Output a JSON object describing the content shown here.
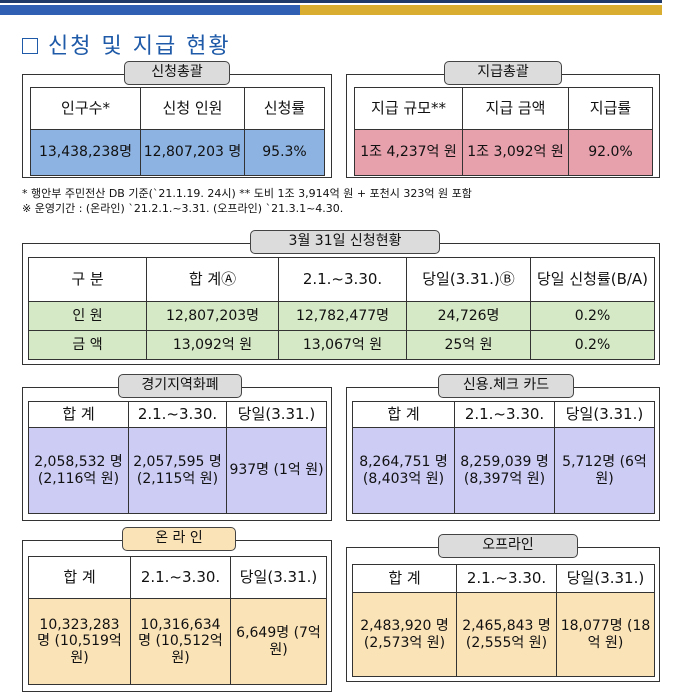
{
  "heading": "신청 및 지급 현황",
  "apply_total": {
    "title": "신청총괄",
    "headers": [
      "인구수*",
      "신청 인원",
      "신청률"
    ],
    "values": [
      "13,438,238명",
      "12,807,203 명",
      "95.3%"
    ]
  },
  "pay_total": {
    "title": "지급총괄",
    "headers": [
      "지급 규모**",
      "지급 금액",
      "지급률"
    ],
    "values": [
      "1조 4,237억 원",
      "1조 3,092억 원",
      "92.0%"
    ]
  },
  "notes": [
    "* 행안부 주민전산 DB 기준(`21.1.19. 24시)  ** 도비 1조 3,914억 원 + 포천시 323억 원 포함",
    "※ 운영기간 : (온라인) `21.2.1.~3.31.  (오프라인) `21.3.1~4.30."
  ],
  "march31": {
    "title": "3월 31일 신청현황",
    "headers": [
      "구 분",
      "합 계Ⓐ",
      "2.1.~3.30.",
      "당일(3.31.)Ⓑ",
      "당일 신청률(B/A)"
    ],
    "rows": [
      [
        "인 원",
        "12,807,203명",
        "12,782,477명",
        "24,726명",
        "0.2%"
      ],
      [
        "금 액",
        "13,092억 원",
        "13,067억 원",
        "25억 원",
        "0.2%"
      ]
    ]
  },
  "gyeonggi": {
    "title": "경기지역화폐",
    "headers": [
      "합 계",
      "2.1.~3.30.",
      "당일(3.31.)"
    ],
    "values": [
      "2,058,532 명 (2,116억 원)",
      "2,057,595 명 (2,115억 원)",
      "937명 (1억 원)"
    ]
  },
  "card": {
    "title": "신용.체크 카드",
    "headers": [
      "합 계",
      "2.1.~3.30.",
      "당일(3.31.)"
    ],
    "values": [
      "8,264,751 명 (8,403억 원)",
      "8,259,039 명 (8,397억 원)",
      "5,712명 (6억 원)"
    ]
  },
  "online": {
    "title": "온 라 인",
    "headers": [
      "합 계",
      "2.1.~3.30.",
      "당일(3.31.)"
    ],
    "values": [
      "10,323,283 명 (10,519억 원)",
      "10,316,634 명 (10,512억 원)",
      "6,649명 (7억 원)"
    ]
  },
  "offline": {
    "title": "오프라인",
    "headers": [
      "합 계",
      "2.1.~3.30.",
      "당일(3.31.)"
    ],
    "values": [
      "2,483,920 명 (2,573억 원)",
      "2,465,843 명 (2,555억 원)",
      "18,077명 (18억 원)"
    ]
  },
  "colors": {
    "accent_blue": "#1e5aa8",
    "apply_fill": "#8db3e2",
    "pay_fill": "#e6a1ad",
    "status_fill": "#d6e9c6",
    "regional_fill": "#ccccf5",
    "channel_fill": "#fbe3b8",
    "online_pill": "#fbe3b8"
  }
}
